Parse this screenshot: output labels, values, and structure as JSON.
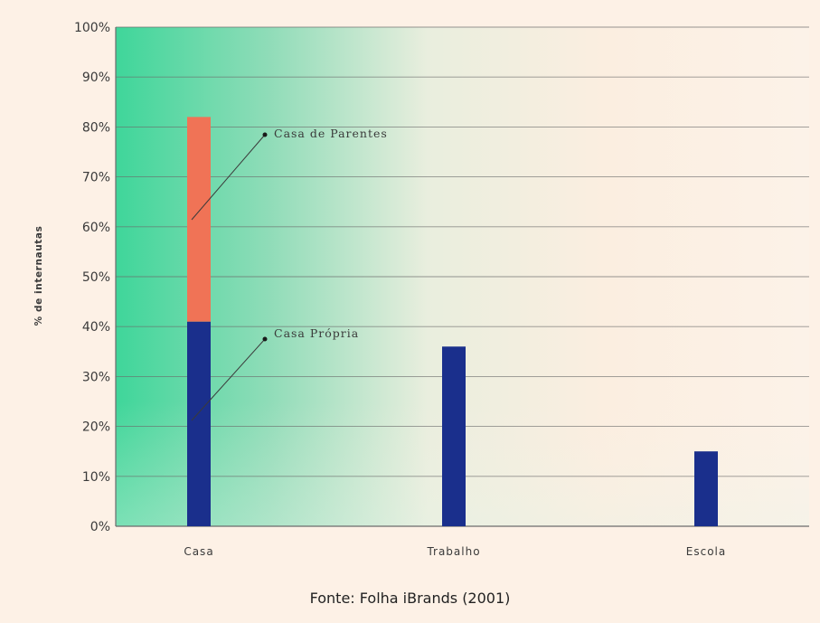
{
  "chart_data": {
    "type": "bar",
    "stacked": true,
    "ylabel": "% de internautas",
    "ylim": [
      0,
      100
    ],
    "y_ticks": [
      0,
      10,
      20,
      30,
      40,
      50,
      60,
      70,
      80,
      90,
      100
    ],
    "y_tick_labels": [
      "0%",
      "10%",
      "20%",
      "30%",
      "40%",
      "50%",
      "60%",
      "70%",
      "80%",
      "90%",
      "100%"
    ],
    "categories": [
      "Casa",
      "Trabalho",
      "Escola"
    ],
    "series": [
      {
        "name": "Casa Própria",
        "values": [
          41,
          36,
          15
        ],
        "color": "#1a2f8c"
      },
      {
        "name": "Casa de Parentes",
        "values": [
          41,
          0,
          0
        ],
        "color": "#f07356"
      }
    ],
    "grid": true,
    "annotations": [
      "Casa de Parentes",
      "Casa Própria"
    ],
    "source": "Fonte: Folha iBrands (2001)"
  }
}
